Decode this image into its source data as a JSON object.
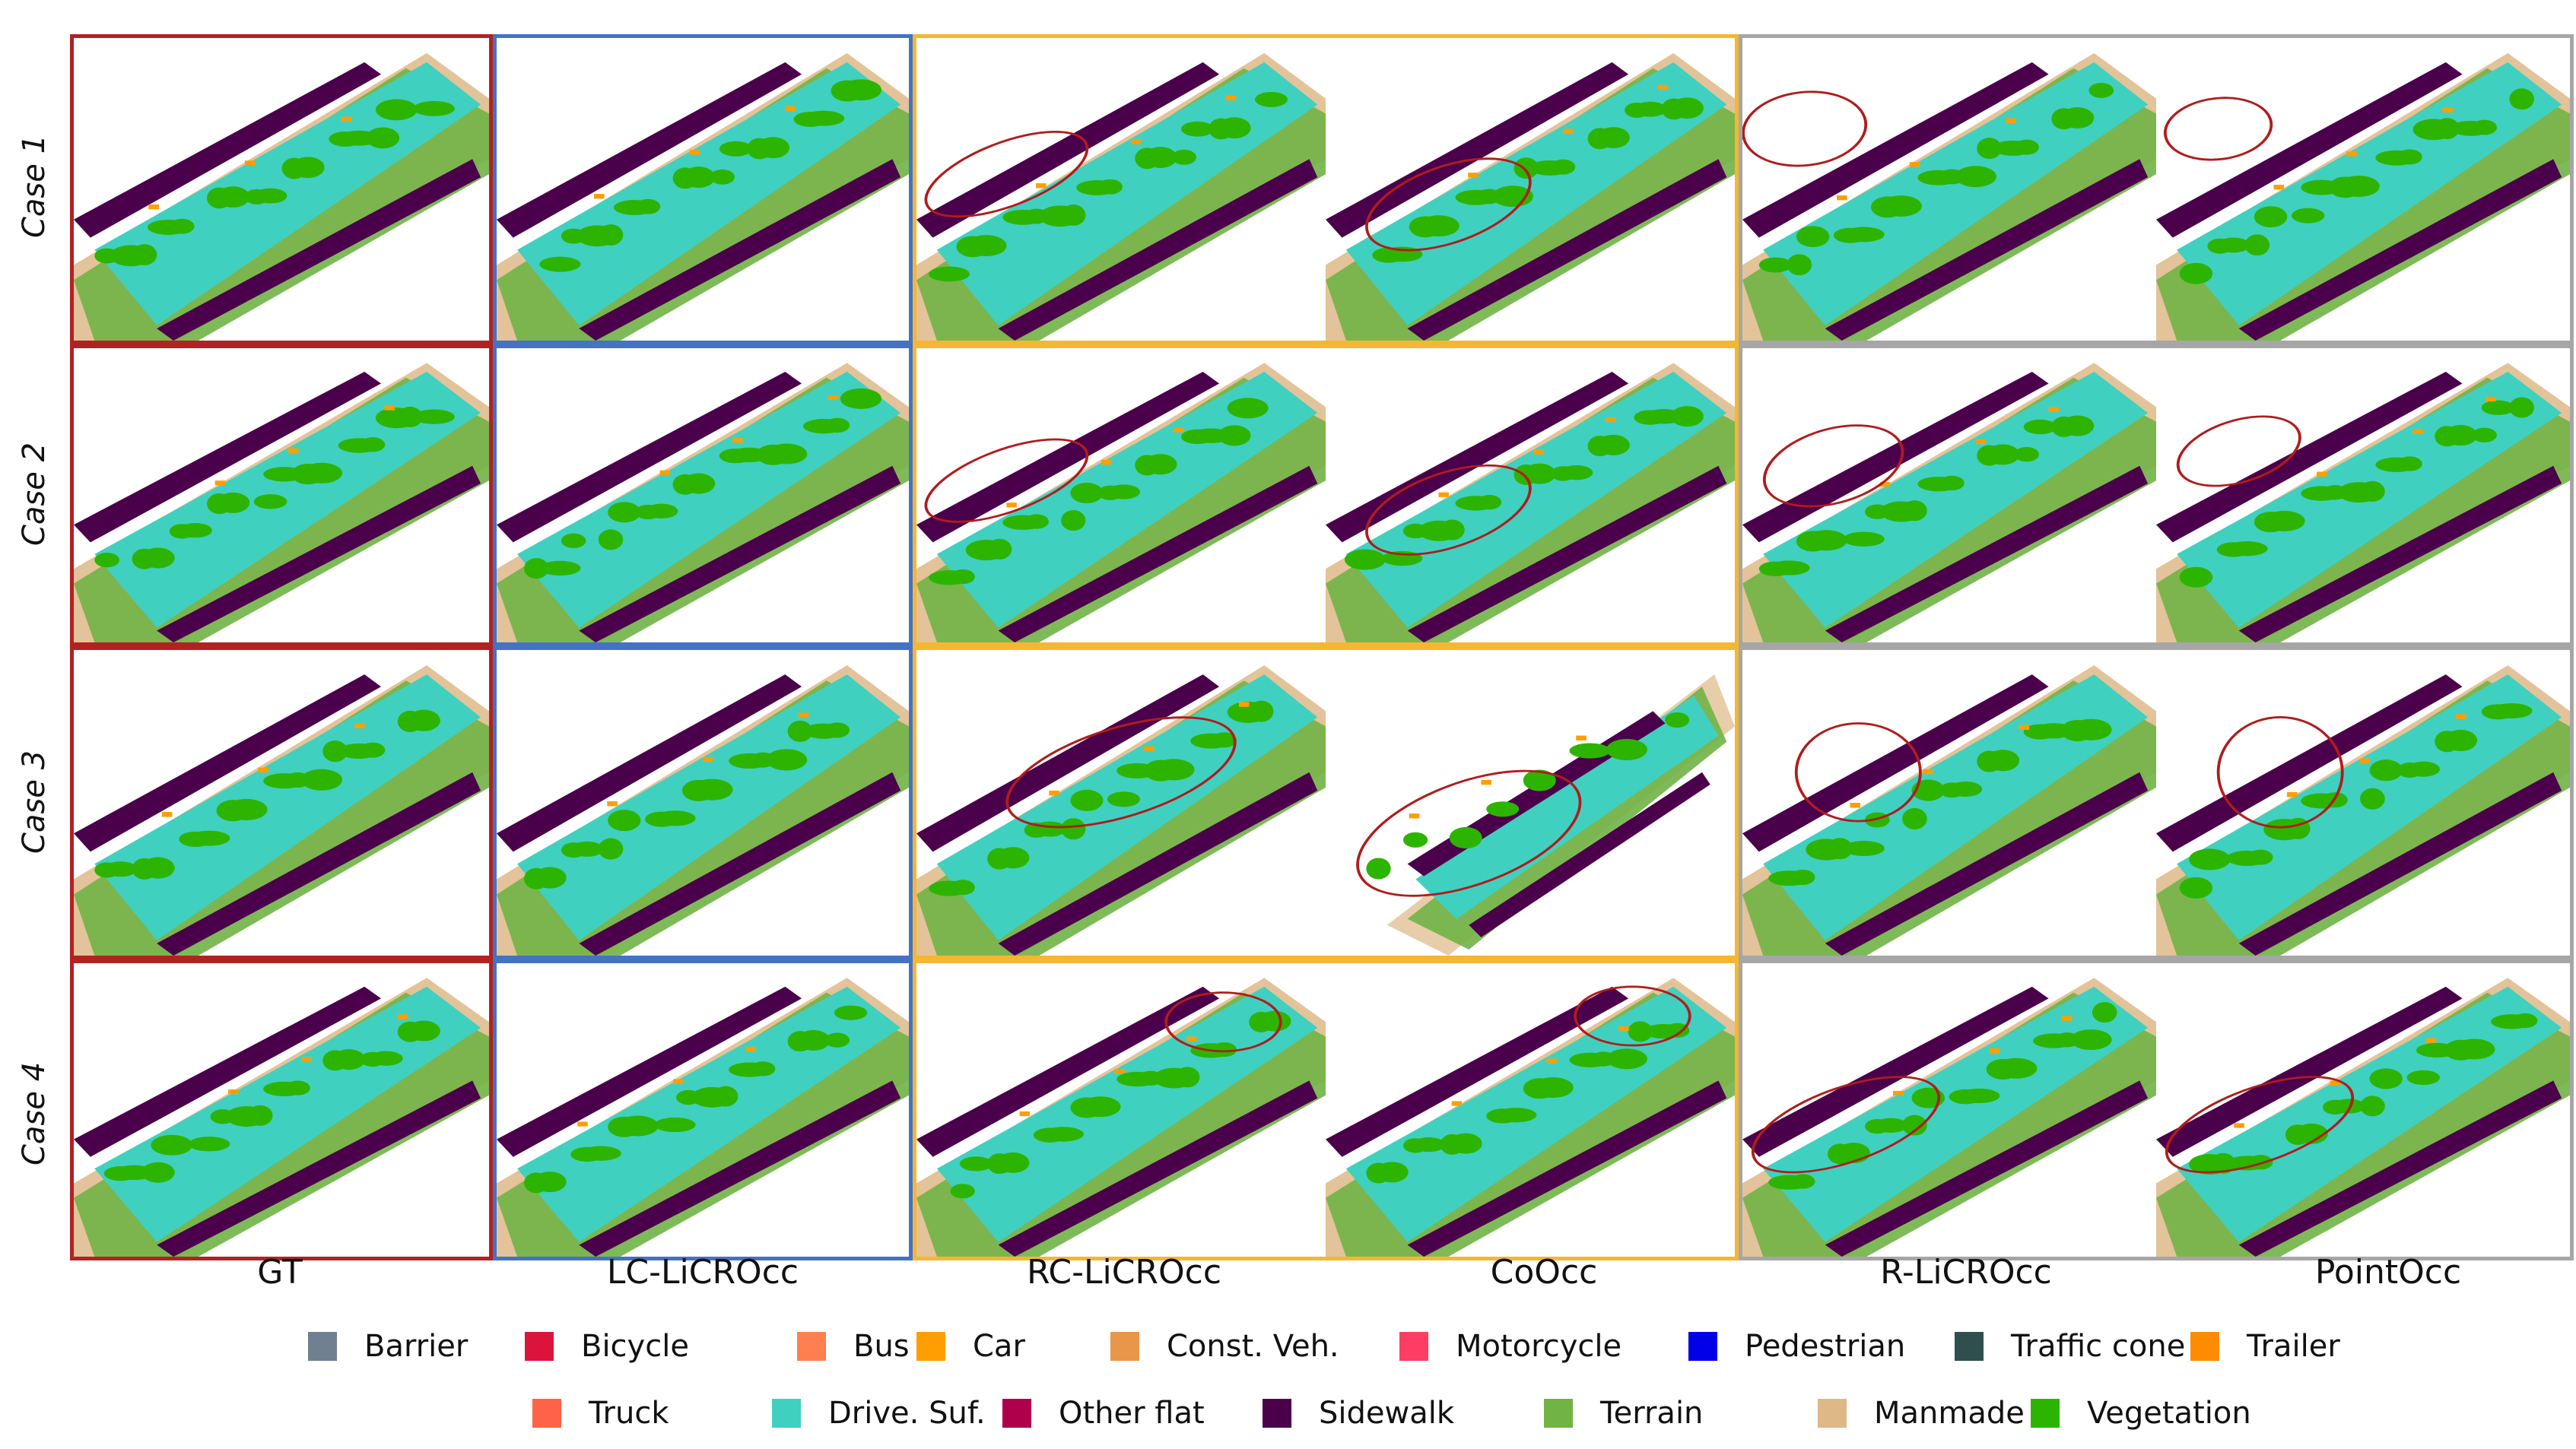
{
  "figure": {
    "row_labels": [
      "Case 1",
      "Case 2",
      "Case 3",
      "Case 4"
    ],
    "column_labels": [
      "GT",
      "LC-LiCROcc",
      "RC-LiCROcc",
      "CoOcc",
      "R-LiCROcc",
      "PointOcc"
    ],
    "group_border_colors": {
      "gt": "#b22222",
      "lc": "#4472c4",
      "rc": "#f5b731",
      "r": "#a6a6a6"
    },
    "highlight_color": "#b01c1c"
  },
  "legend": [
    {
      "label": "Barrier",
      "color": "#708090"
    },
    {
      "label": "Bicycle",
      "color": "#dc143c"
    },
    {
      "label": "Bus",
      "color": "#ff7f50"
    },
    {
      "label": "Car",
      "color": "#ff9e00"
    },
    {
      "label": "Const. Veh.",
      "color": "#e9964a"
    },
    {
      "label": "Motorcycle",
      "color": "#ff3d63"
    },
    {
      "label": "Pedestrian",
      "color": "#0000e6"
    },
    {
      "label": "Traffic cone",
      "color": "#2f4f4f"
    },
    {
      "label": "Trailer",
      "color": "#ff8c00"
    },
    {
      "label": "Truck",
      "color": "#ff6347"
    },
    {
      "label": "Drive. Suf.",
      "color": "#40d0c0"
    },
    {
      "label": "Other flat",
      "color": "#af004b"
    },
    {
      "label": "Sidewalk",
      "color": "#4b004b"
    },
    {
      "label": "Terrain",
      "color": "#70b446"
    },
    {
      "label": "Manmade",
      "color": "#deb887"
    },
    {
      "label": "Vegetation",
      "color": "#2db400"
    }
  ]
}
